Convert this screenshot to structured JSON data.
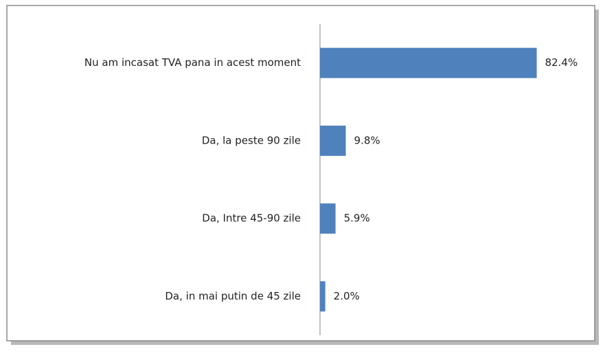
{
  "chart_data": {
    "type": "barh",
    "categories": [
      "Nu am incasat TVA pana in acest moment",
      "Da, la peste 90 zile",
      "Da, Intre 45-90 zile",
      "Da, in mai putin de 45 zile"
    ],
    "values": [
      82.4,
      9.8,
      5.9,
      2.0
    ],
    "value_labels": [
      "82.4%",
      "9.8%",
      "5.9%",
      "2.0%"
    ],
    "color": "#4f81bd",
    "xlim": [
      0,
      100
    ]
  }
}
